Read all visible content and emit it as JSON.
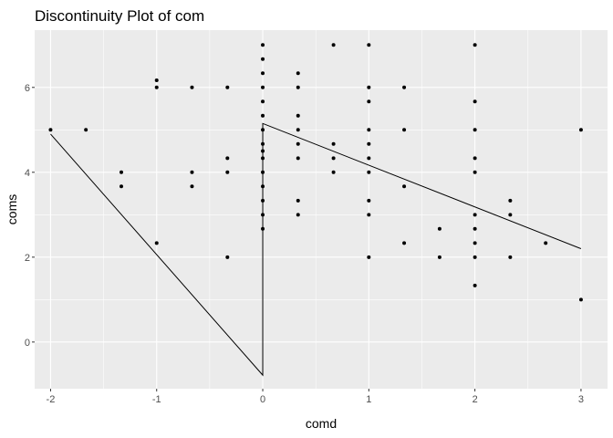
{
  "chart_data": {
    "type": "scatter",
    "title": "Discontinuity Plot of com",
    "xlabel": "comd",
    "ylabel": "coms",
    "xlim": [
      -2.15,
      3.25
    ],
    "ylim": [
      -1.1,
      7.35
    ],
    "xticks": [
      -2,
      -1,
      0,
      1,
      2,
      3
    ],
    "yticks": [
      0,
      2,
      4,
      6
    ],
    "grid": true,
    "background": "#ebebeb",
    "grid_color": "#ffffff",
    "point_color": "#000000",
    "line_color": "#000000",
    "points": [
      [
        -2,
        5
      ],
      [
        -1.667,
        5
      ],
      [
        -1.333,
        4
      ],
      [
        -1.333,
        3.667
      ],
      [
        -1,
        6.167
      ],
      [
        -1,
        6
      ],
      [
        -1,
        2.333
      ],
      [
        -0.667,
        6
      ],
      [
        -0.667,
        4
      ],
      [
        -0.667,
        3.667
      ],
      [
        -0.333,
        6
      ],
      [
        -0.333,
        4.333
      ],
      [
        -0.333,
        4
      ],
      [
        -0.333,
        2
      ],
      [
        0,
        7
      ],
      [
        0,
        6.667
      ],
      [
        0,
        6.333
      ],
      [
        0,
        6
      ],
      [
        0,
        5.667
      ],
      [
        0,
        5.333
      ],
      [
        0,
        5
      ],
      [
        0,
        4.667
      ],
      [
        0,
        4.5
      ],
      [
        0,
        4.333
      ],
      [
        0,
        4
      ],
      [
        0,
        3.667
      ],
      [
        0,
        3.333
      ],
      [
        0,
        3
      ],
      [
        0,
        2.667
      ],
      [
        0.333,
        6.333
      ],
      [
        0.333,
        6
      ],
      [
        0.333,
        5.333
      ],
      [
        0.333,
        5
      ],
      [
        0.333,
        4.667
      ],
      [
        0.333,
        4.333
      ],
      [
        0.333,
        3.333
      ],
      [
        0.333,
        3
      ],
      [
        0.667,
        7
      ],
      [
        0.667,
        4.667
      ],
      [
        0.667,
        4.333
      ],
      [
        0.667,
        4
      ],
      [
        1,
        7
      ],
      [
        1,
        6
      ],
      [
        1,
        5.667
      ],
      [
        1,
        5
      ],
      [
        1,
        4.667
      ],
      [
        1,
        4.333
      ],
      [
        1,
        4
      ],
      [
        1,
        3.333
      ],
      [
        1,
        3
      ],
      [
        1,
        2
      ],
      [
        1.333,
        6
      ],
      [
        1.333,
        5
      ],
      [
        1.333,
        3.667
      ],
      [
        1.333,
        2.333
      ],
      [
        1.667,
        2.667
      ],
      [
        1.667,
        2
      ],
      [
        2,
        7
      ],
      [
        2,
        5.667
      ],
      [
        2,
        5
      ],
      [
        2,
        4.333
      ],
      [
        2,
        4
      ],
      [
        2,
        3
      ],
      [
        2,
        2.667
      ],
      [
        2,
        2.333
      ],
      [
        2,
        2
      ],
      [
        2,
        1.333
      ],
      [
        2.333,
        3.333
      ],
      [
        2.333,
        3
      ],
      [
        2.333,
        2
      ],
      [
        2.667,
        2.333
      ],
      [
        3,
        5
      ],
      [
        3,
        1
      ]
    ],
    "line": [
      [
        -2,
        4.9
      ],
      [
        0,
        -0.78
      ],
      [
        0,
        5.15
      ],
      [
        3,
        2.2
      ]
    ]
  }
}
